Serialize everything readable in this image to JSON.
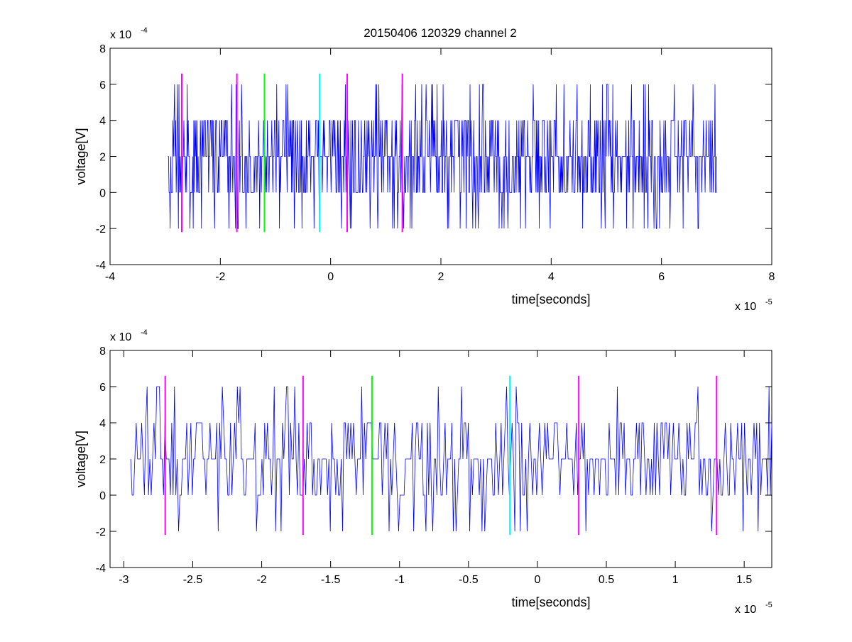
{
  "title": "20150406 120329 channel 2",
  "colors": {
    "signal": "#0000ff",
    "magenta": "#ff00ff",
    "green": "#00ff00",
    "cyan": "#00ffff",
    "axis": "#000000"
  },
  "chart_data": [
    {
      "type": "line",
      "title": "20150406 120329 channel 2",
      "xlabel": "time[seconds]",
      "ylabel": "voltage[V]",
      "x_exponent_label": "x 10",
      "x_exponent": "-5",
      "y_exponent_label": "x 10",
      "y_exponent": "-4",
      "xlim": [
        -4,
        8
      ],
      "ylim": [
        -4,
        8
      ],
      "xticks": [
        -4,
        -2,
        0,
        2,
        4,
        6,
        8
      ],
      "xtick_labels": [
        "-4",
        "-2",
        "0",
        "2",
        "4",
        "6",
        "8"
      ],
      "yticks": [
        -4,
        -2,
        0,
        2,
        4,
        6,
        8
      ],
      "ytick_labels": [
        "-4",
        "-2",
        "0",
        "2",
        "4",
        "6",
        "8"
      ],
      "grid": false,
      "series": [
        {
          "color": "#0000ff",
          "x_range": [
            -2.95,
            7.0
          ],
          "levels": [
            -2,
            0,
            2,
            4,
            6
          ],
          "baseline": 2
        }
      ],
      "markers": [
        {
          "x": -2.7,
          "color": "#ff00ff",
          "y_range": [
            -2.2,
            6.6
          ]
        },
        {
          "x": -1.7,
          "color": "#ff00ff",
          "y_range": [
            -2.2,
            6.6
          ]
        },
        {
          "x": -1.2,
          "color": "#00ff00",
          "y_range": [
            -2.2,
            6.6
          ]
        },
        {
          "x": -0.2,
          "color": "#00ffff",
          "y_range": [
            -2.2,
            6.6
          ]
        },
        {
          "x": 0.3,
          "color": "#ff00ff",
          "y_range": [
            -2.2,
            6.6
          ]
        },
        {
          "x": 1.3,
          "color": "#ff00ff",
          "y_range": [
            -2.2,
            6.6
          ]
        }
      ]
    },
    {
      "type": "line",
      "title": "",
      "xlabel": "time[seconds]",
      "ylabel": "voltage[V]",
      "x_exponent_label": "x 10",
      "x_exponent": "-5",
      "y_exponent_label": "x 10",
      "y_exponent": "-4",
      "xlim": [
        -3.1,
        1.7
      ],
      "ylim": [
        -4,
        8
      ],
      "xticks": [
        -3,
        -2.5,
        -2,
        -1.5,
        -1,
        -0.5,
        0,
        0.5,
        1,
        1.5
      ],
      "xtick_labels": [
        "-3",
        "-2.5",
        "-2",
        "-1.5",
        "-1",
        "-0.5",
        "0",
        "0.5",
        "1",
        "1.5"
      ],
      "yticks": [
        -4,
        -2,
        0,
        2,
        4,
        6,
        8
      ],
      "ytick_labels": [
        "-4",
        "-2",
        "0",
        "2",
        "4",
        "6",
        "8"
      ],
      "grid": false,
      "series": [
        {
          "color": "#0000ff",
          "x_range": [
            -2.95,
            1.7
          ],
          "levels": [
            -2,
            0,
            2,
            4,
            6
          ],
          "baseline": 2
        }
      ],
      "markers": [
        {
          "x": -2.7,
          "color": "#ff00ff",
          "y_range": [
            -2.2,
            6.6
          ]
        },
        {
          "x": -1.7,
          "color": "#ff00ff",
          "y_range": [
            -2.2,
            6.6
          ]
        },
        {
          "x": -1.2,
          "color": "#00ff00",
          "y_range": [
            -2.2,
            6.6
          ]
        },
        {
          "x": -0.2,
          "color": "#00ffff",
          "y_range": [
            -2.2,
            6.6
          ]
        },
        {
          "x": 0.3,
          "color": "#ff00ff",
          "y_range": [
            -2.2,
            6.6
          ]
        },
        {
          "x": 1.3,
          "color": "#ff00ff",
          "y_range": [
            -2.2,
            6.6
          ]
        }
      ]
    }
  ]
}
